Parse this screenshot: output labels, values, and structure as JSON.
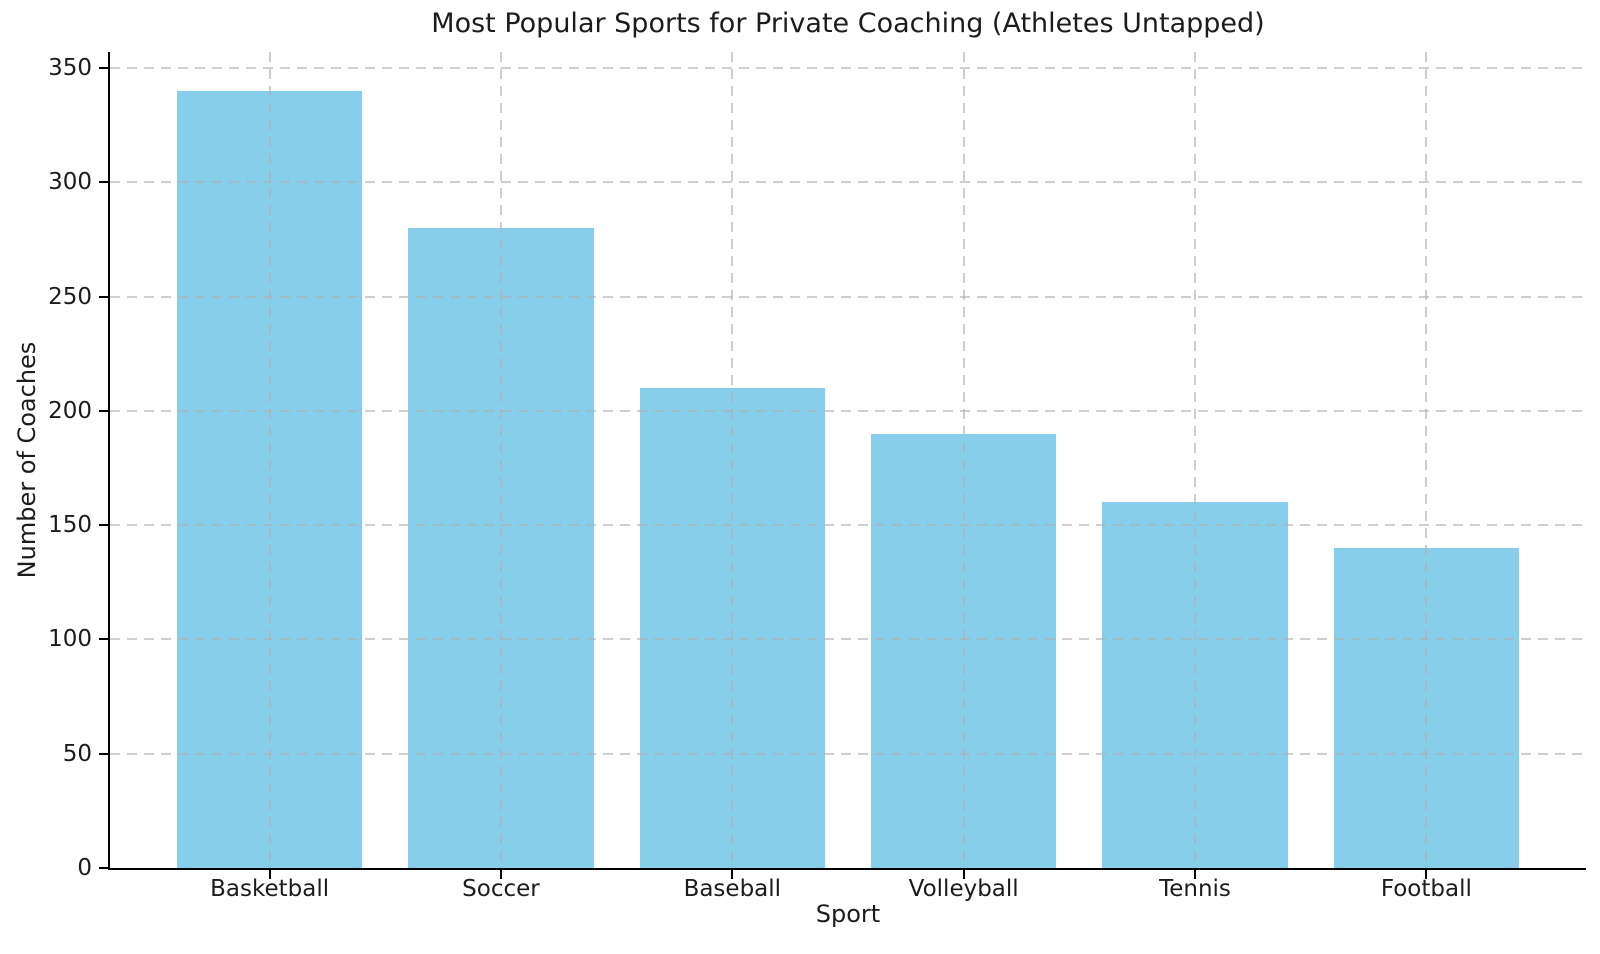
{
  "chart_data": {
    "type": "bar",
    "title": "Most Popular Sports for Private Coaching (Athletes Untapped)",
    "categories": [
      "Basketball",
      "Soccer",
      "Baseball",
      "Volleyball",
      "Tennis",
      "Football"
    ],
    "values": [
      340,
      280,
      210,
      190,
      160,
      140
    ],
    "xlabel": "Sport",
    "ylabel": "Number of Coaches",
    "ylim": [
      0,
      357
    ],
    "yticks": [
      0,
      50,
      100,
      150,
      200,
      250,
      300,
      350
    ],
    "bar_color": "#87CEEB",
    "grid": true,
    "grid_style": "dashed",
    "grid_color": "#afafaf",
    "spine_color": "#000000",
    "legend": "none",
    "background": "#ffffff"
  }
}
